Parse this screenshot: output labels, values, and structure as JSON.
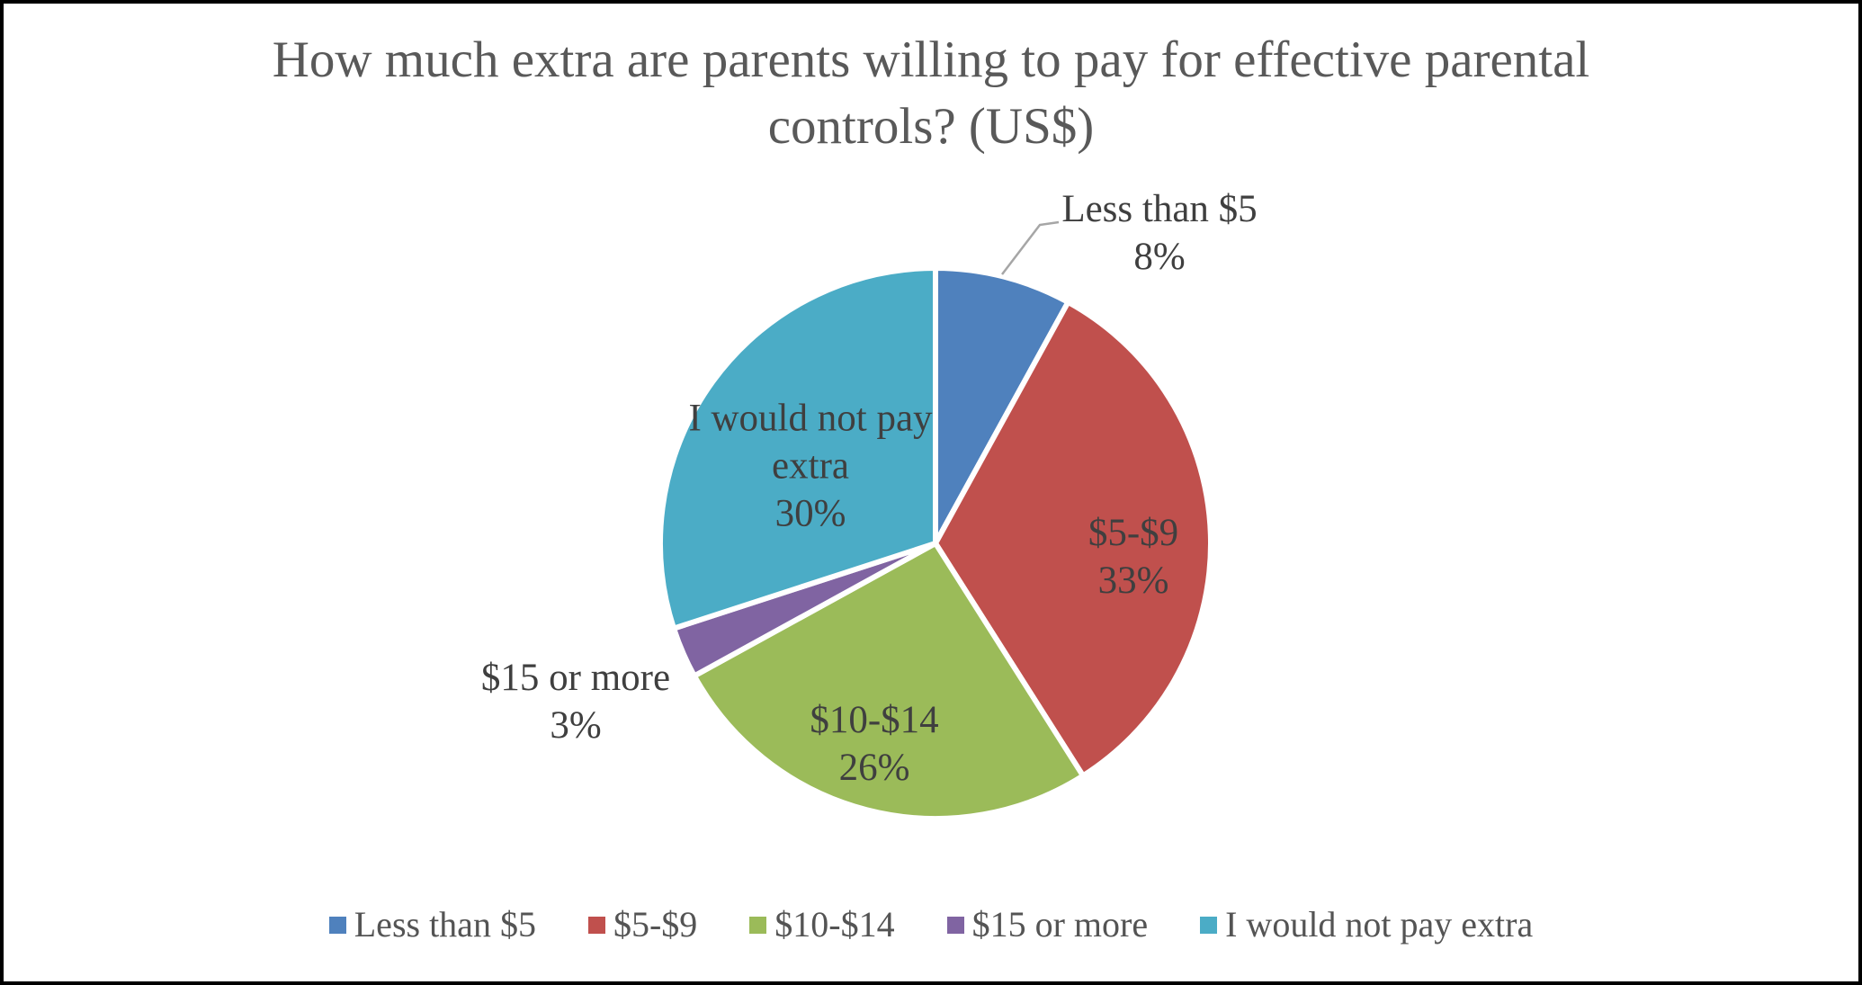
{
  "frame": {
    "background_color": "#ffffff",
    "border_color": "#000000"
  },
  "chart_data": {
    "type": "pie",
    "title": "How much extra are parents willing to pay for effective parental controls? (US$)",
    "categories": [
      "Less than $5",
      "$5-$9",
      "$10-$14",
      "$15 or more",
      "I would not pay extra"
    ],
    "values": [
      8,
      33,
      26,
      3,
      30
    ],
    "value_unit": "%",
    "data_labels": [
      {
        "name": "Less than $5",
        "percent": "8%",
        "placement": "outside-with-leader"
      },
      {
        "name": "$5-$9",
        "percent": "33%",
        "placement": "inside"
      },
      {
        "name": "$10-$14",
        "percent": "26%",
        "placement": "inside"
      },
      {
        "name": "$15 or more",
        "percent": "3%",
        "placement": "outside"
      },
      {
        "name": "I would not pay extra",
        "percent": "30%",
        "placement": "inside"
      }
    ],
    "colors": [
      "#4F81BD",
      "#C0504D",
      "#9BBB59",
      "#8064A2",
      "#4BACC6"
    ],
    "slice_border_color": "#ffffff",
    "start_angle_deg": 0,
    "direction": "clockwise",
    "legend_position": "bottom",
    "leader_line_color": "#a6a6a6",
    "title_color": "#595959",
    "label_color": "#3f3f3f"
  },
  "legend": {
    "items": [
      "Less than $5",
      "$5-$9",
      "$10-$14",
      "$15 or more",
      "I would not pay extra"
    ]
  }
}
